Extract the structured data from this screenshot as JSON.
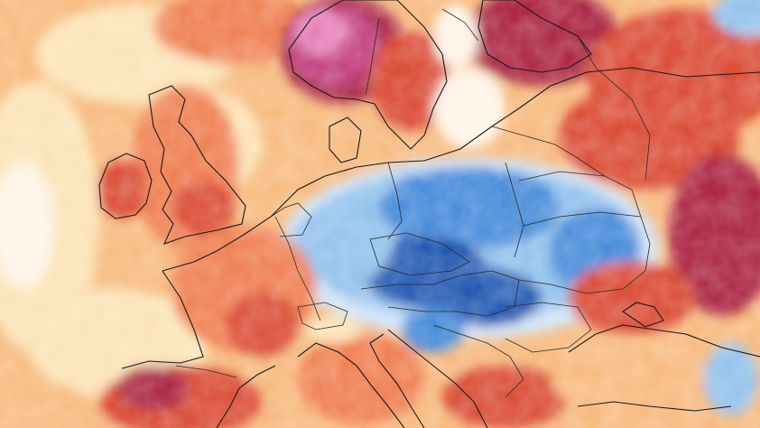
{
  "map": {
    "palette": {
      "warm_light": "#fbe2b4",
      "warm": "#f7b77a",
      "hot": "#ef7a4c",
      "very_hot": "#d9442f",
      "extreme": "#a81e3a",
      "magenta": "#c0387a",
      "pink": "#e67bb7",
      "neutral": "#fff3e6",
      "cool_light": "#cfe3f7",
      "cool": "#8fc0ec",
      "cold": "#3f86d8",
      "very_cold": "#1c52b0",
      "coast": "#1a1a1a",
      "borders": "#2a2a2a"
    }
  }
}
